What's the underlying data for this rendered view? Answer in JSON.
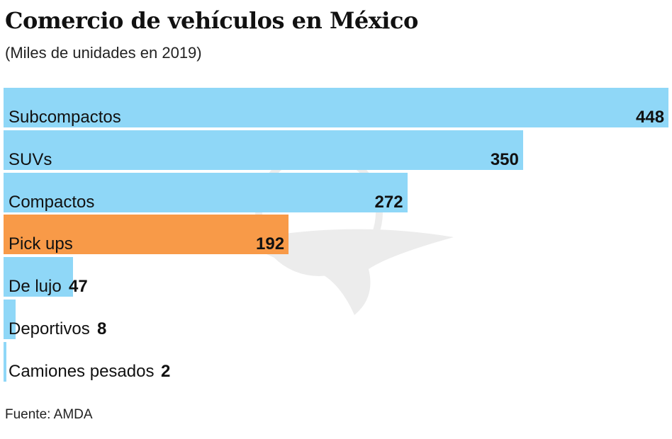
{
  "chart_data": {
    "type": "bar",
    "orientation": "horizontal",
    "title": "Comercio de vehículos en México",
    "subtitle": "(Miles de unidades en 2019)",
    "categories": [
      "Subcompactos",
      "SUVs",
      "Compactos",
      "Pick ups",
      "De lujo",
      "Deportivos",
      "Camiones pesados"
    ],
    "values": [
      448,
      350,
      272,
      192,
      47,
      8,
      2
    ],
    "highlight": "Pick ups",
    "colors": {
      "default": "#8fd7f7",
      "highlight": "#f89a48"
    },
    "xlim": [
      0,
      448
    ],
    "grid": false,
    "source": "Fuente: AMDA"
  }
}
